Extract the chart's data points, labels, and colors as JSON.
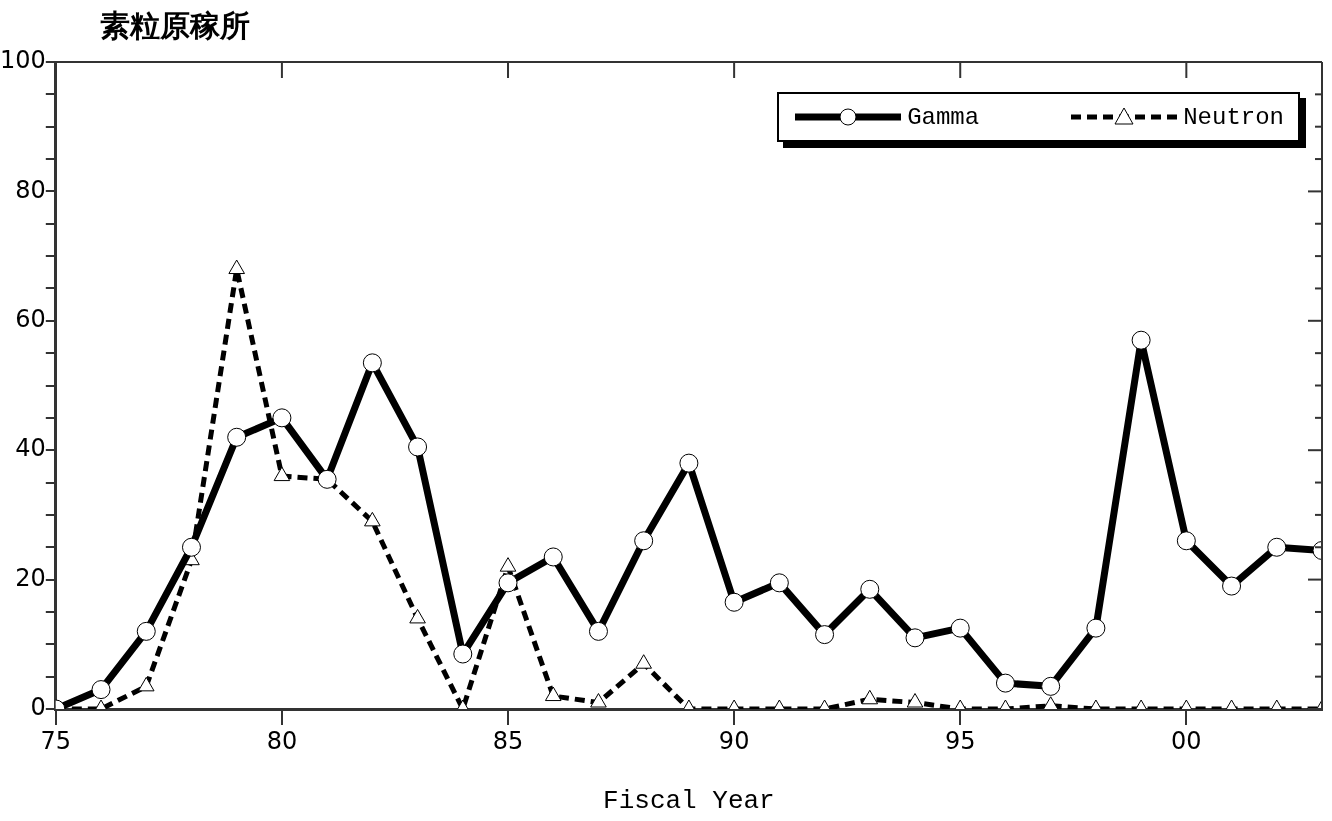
{
  "chart_data": {
    "type": "line",
    "title": "素粒原稼所",
    "xlabel": "Fiscal Year",
    "x": [
      1975,
      1976,
      1977,
      1978,
      1979,
      1980,
      1981,
      1982,
      1983,
      1984,
      1985,
      1986,
      1987,
      1988,
      1989,
      1990,
      1991,
      1992,
      1993,
      1994,
      1995,
      1996,
      1997,
      1998,
      1999,
      2000,
      2001,
      2002,
      2003
    ],
    "series": [
      {
        "name": "Gamma",
        "color": "#000000",
        "line_style": "solid",
        "marker": "circle",
        "values": [
          0,
          3,
          12,
          25,
          42,
          45,
          35.5,
          53.5,
          40.5,
          8.5,
          19.5,
          23.5,
          12,
          26,
          38,
          16.5,
          19.5,
          11.5,
          18.5,
          11,
          12.5,
          4,
          3.5,
          12.5,
          57,
          26,
          19,
          25,
          24.5
        ]
      },
      {
        "name": "Neutron",
        "color": "#000000",
        "line_style": "dashed",
        "marker": "triangle",
        "values": [
          0,
          0,
          3.5,
          23,
          68,
          36,
          35.5,
          29,
          14,
          0,
          22,
          2,
          1,
          7,
          0,
          0,
          0,
          0,
          1.5,
          1,
          0,
          0,
          0.5,
          0,
          0,
          0,
          0,
          0,
          0
        ]
      }
    ],
    "xlim": [
      1975,
      2003
    ],
    "xticks": [
      {
        "value": 1975,
        "label": "75"
      },
      {
        "value": 1980,
        "label": "80"
      },
      {
        "value": 1985,
        "label": "85"
      },
      {
        "value": 1990,
        "label": "90"
      },
      {
        "value": 1995,
        "label": "95"
      },
      {
        "value": 2000,
        "label": "00"
      }
    ],
    "ylim": [
      0,
      100
    ],
    "yticks": [
      0,
      {
        "value": 5,
        "label": null
      },
      {
        "value": 10,
        "label": null
      },
      {
        "value": 15,
        "label": null
      },
      20,
      {
        "value": 25,
        "label": null
      },
      {
        "value": 30,
        "label": null
      },
      {
        "value": 35,
        "label": null
      },
      40,
      {
        "value": 45,
        "label": null
      },
      {
        "value": 50,
        "label": null
      },
      {
        "value": 55,
        "label": null
      },
      60,
      {
        "value": 65,
        "label": null
      },
      {
        "value": 70,
        "label": null
      },
      {
        "value": 75,
        "label": null
      },
      80,
      {
        "value": 85,
        "label": null
      },
      {
        "value": 90,
        "label": null
      },
      {
        "value": 95,
        "label": null
      },
      100
    ],
    "legend": "top right"
  }
}
